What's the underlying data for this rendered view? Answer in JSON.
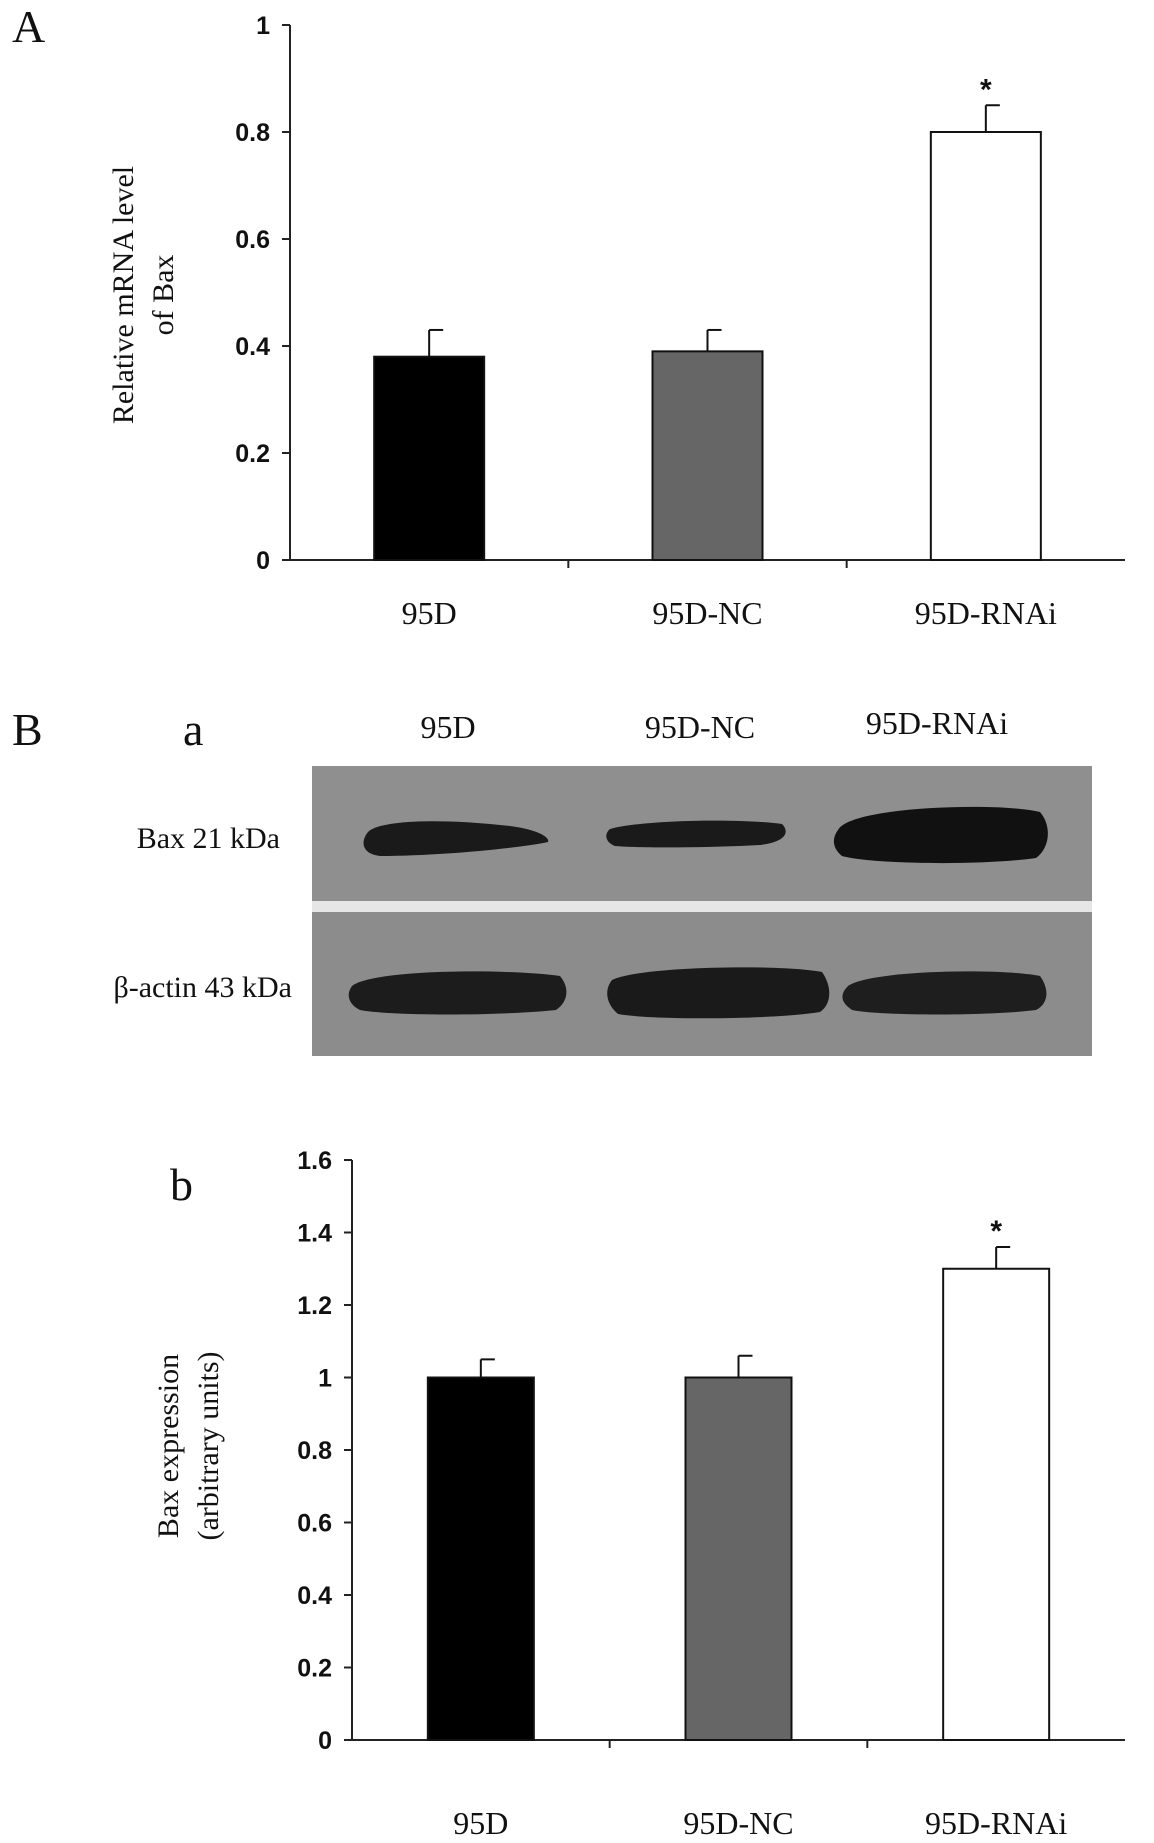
{
  "panels": {
    "A": "A",
    "B": "B",
    "a": "a",
    "b": "b"
  },
  "chart_data": [
    {
      "type": "bar",
      "panel": "A",
      "categories": [
        "95D",
        "95D-NC",
        "95D-RNAi"
      ],
      "values": [
        0.38,
        0.39,
        0.8
      ],
      "errors": [
        0.05,
        0.04,
        0.05
      ],
      "significance": [
        "",
        "",
        "*"
      ],
      "bar_colors": [
        "#000000",
        "#666666",
        "#ffffff"
      ],
      "ylabel_lines": [
        "Relative mRNA level",
        "of Bax"
      ],
      "ylim": [
        0,
        1
      ],
      "yticks": [
        0,
        0.2,
        0.4,
        0.6,
        0.8,
        1
      ],
      "ytick_labels": [
        "0",
        "0.2",
        "0.4",
        "0.6",
        "0.8",
        "1"
      ],
      "grid": false
    },
    {
      "type": "bar",
      "panel": "b",
      "categories": [
        "95D",
        "95D-NC",
        "95D-RNAi"
      ],
      "values": [
        1.0,
        1.0,
        1.3
      ],
      "errors": [
        0.05,
        0.06,
        0.06
      ],
      "significance": [
        "",
        "",
        "*"
      ],
      "bar_colors": [
        "#000000",
        "#666666",
        "#ffffff"
      ],
      "ylabel_lines": [
        "Bax expression",
        "(arbitrary units)"
      ],
      "ylim": [
        0,
        1.6
      ],
      "yticks": [
        0,
        0.2,
        0.4,
        0.6,
        0.8,
        1,
        1.2,
        1.4,
        1.6
      ],
      "ytick_labels": [
        "0",
        "0.2",
        "0.4",
        "0.6",
        "0.8",
        "1",
        "1.2",
        "1.4",
        "1.6"
      ],
      "grid": false
    }
  ],
  "blot": {
    "lanes": [
      "95D",
      "95D-NC",
      "95D-RNAi"
    ],
    "rows": [
      {
        "label": "Bax 21 kDa",
        "intensities": [
          0.65,
          0.6,
          1.0
        ]
      },
      {
        "label": "β-actin 43 kDa",
        "intensities": [
          0.9,
          0.95,
          0.8
        ]
      }
    ]
  }
}
